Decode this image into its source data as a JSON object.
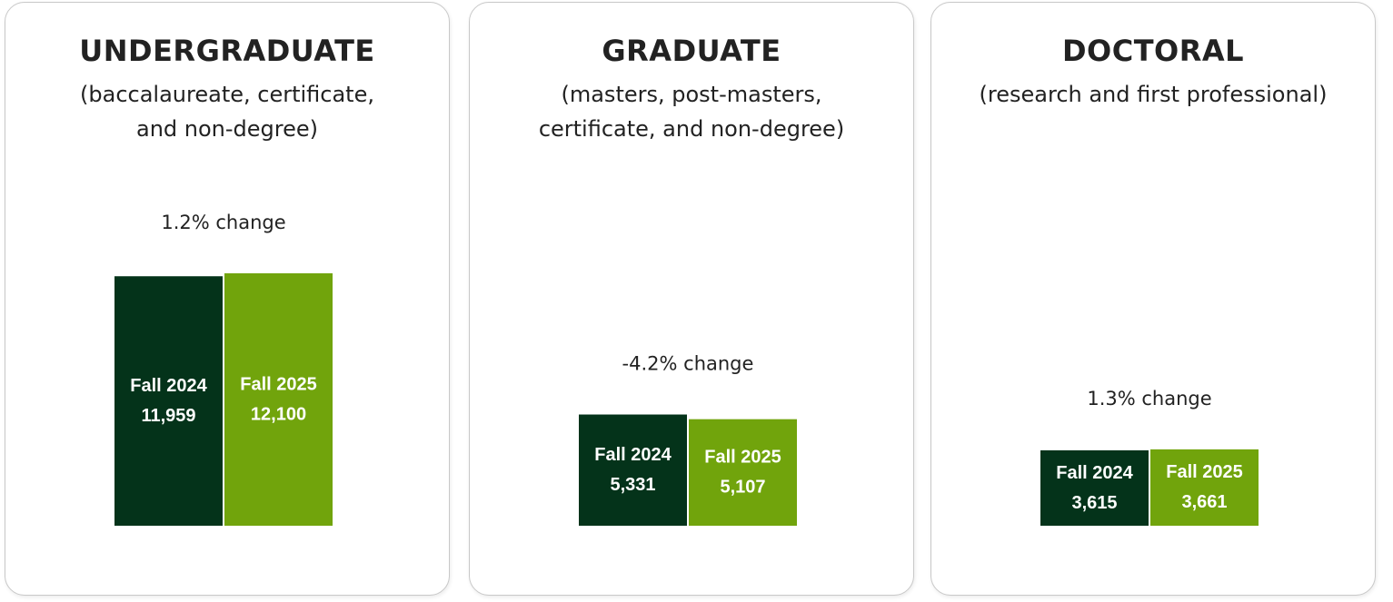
{
  "chart_data": [
    {
      "type": "bar",
      "title": "UNDERGRADUATE",
      "subtitle": "(baccalaureate, certificate, and non-degree)",
      "annotation": "1.2% change",
      "categories": [
        "Fall 2024",
        "Fall 2025"
      ],
      "values": [
        11959,
        12100
      ],
      "value_labels": [
        "11,959",
        "12,100"
      ],
      "colors": [
        "#04331a",
        "#71a40c"
      ]
    },
    {
      "type": "bar",
      "title": "GRADUATE",
      "subtitle": "(masters, post-masters, certificate, and non-degree)",
      "annotation": "-4.2% change",
      "categories": [
        "Fall 2024",
        "Fall 2025"
      ],
      "values": [
        5331,
        5107
      ],
      "value_labels": [
        "5,331",
        "5,107"
      ],
      "colors": [
        "#04331a",
        "#71a40c"
      ]
    },
    {
      "type": "bar",
      "title": "DOCTORAL",
      "subtitle": "(research and first professional)",
      "annotation": "1.3% change",
      "categories": [
        "Fall 2024",
        "Fall 2025"
      ],
      "values": [
        3615,
        3661
      ],
      "value_labels": [
        "3,615",
        "3,661"
      ],
      "colors": [
        "#04331a",
        "#71a40c"
      ]
    }
  ]
}
